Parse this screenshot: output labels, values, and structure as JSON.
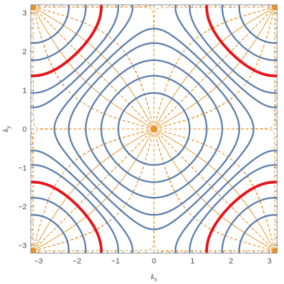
{
  "chart_data": {
    "type": "contour",
    "description_free": true,
    "xlabel": "k",
    "xlabel_sub": "x",
    "ylabel": "k",
    "ylabel_sub": "y",
    "xlim": [
      -3.2,
      3.2
    ],
    "ylim": [
      -3.2,
      3.2
    ],
    "xticks": [
      -3,
      -2,
      -1,
      0,
      1,
      2,
      3
    ],
    "yticks": [
      -3,
      -2,
      -1,
      0,
      1,
      2,
      3
    ],
    "xtick_labels": [
      "−3",
      "−2",
      "−1",
      "0",
      "1",
      "2",
      "3"
    ],
    "ytick_labels": [
      "−3",
      "−2",
      "−1",
      "0",
      "1",
      "2",
      "3"
    ],
    "function": "cos(kx) + cos(ky)",
    "contour_levels": [
      1.6,
      1.2,
      0.8,
      0.4,
      0.15,
      -0.15,
      -0.4,
      -0.8,
      -1.2,
      -1.6
    ],
    "highlighted_level": -0.8,
    "highlighted_reference": {
      "kx_intercept": 2.0,
      "ky_intercept": 2.0
    },
    "gradient_lines": {
      "style": "dashed",
      "count_angles": 24
    },
    "grid": false,
    "colors": {
      "contours": "#5c7fae",
      "highlight": "#e8131a",
      "gradient": "#e8932a",
      "frame": "#888888"
    }
  }
}
